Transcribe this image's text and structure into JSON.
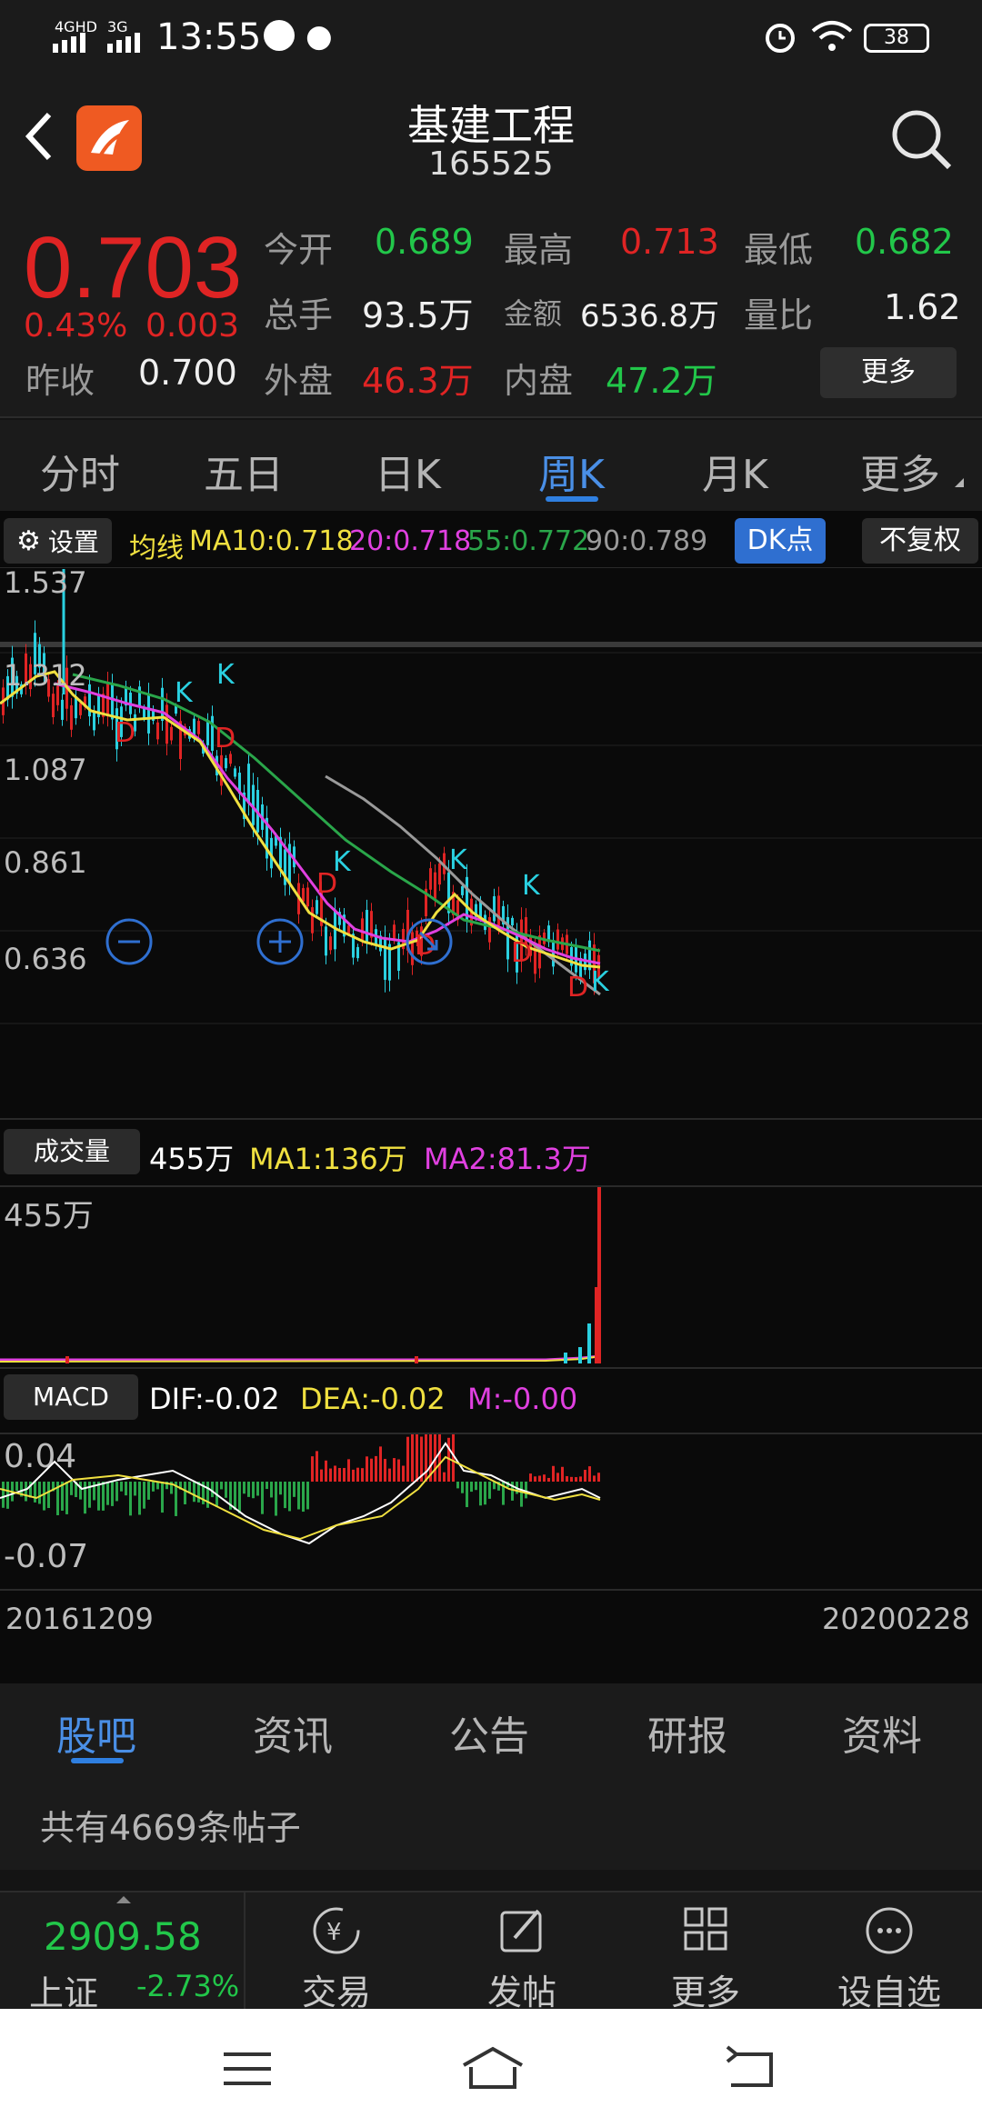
{
  "status": {
    "time": "13:55",
    "net1": "4GHD",
    "net2": "3G",
    "battery": "38"
  },
  "header": {
    "title": "基建工程",
    "code": "165525"
  },
  "quote": {
    "price": "0.703",
    "change_pct": "0.43%",
    "change": "0.003",
    "prev_close_label": "昨收",
    "prev_close": "0.700",
    "open_label": "今开",
    "open": "0.689",
    "high_label": "最高",
    "high": "0.713",
    "low_label": "最低",
    "low": "0.682",
    "volume_label": "总手",
    "volume": "93.5万",
    "amount_label": "金额",
    "amount": "6536.8万",
    "ratio_label": "量比",
    "ratio": "1.62",
    "outer_label": "外盘",
    "outer": "46.3万",
    "inner_label": "内盘",
    "inner": "47.2万",
    "more": "更多"
  },
  "periods": [
    "分时",
    "五日",
    "日K",
    "周K",
    "月K",
    "更多"
  ],
  "indicator_bar": {
    "settings": "设置",
    "ma_label": "均线",
    "ma10": "MA10:0.718",
    "ma20": "20:0.718",
    "ma55": "55:0.772",
    "ma90": "90:0.789",
    "dk": "DK点",
    "adjust": "不复权"
  },
  "price_axis": [
    "1.537",
    "1.312",
    "1.087",
    "0.861",
    "0.636"
  ],
  "volume_bar": {
    "label": "成交量",
    "value": "455万",
    "ma1": "MA1:136万",
    "ma2": "MA2:81.3万",
    "axis": "455万"
  },
  "macd_bar": {
    "label": "MACD",
    "dif": "DIF:-0.02",
    "dea": "DEA:-0.02",
    "m": "M:-0.00",
    "axis_top": "0.04",
    "axis_bottom": "-0.07"
  },
  "date_axis": {
    "start": "20161209",
    "end": "20200228"
  },
  "bottom_tabs": [
    "股吧",
    "资讯",
    "公告",
    "研报",
    "资料"
  ],
  "posts": "共有4669条帖子",
  "index": {
    "value": "2909.58",
    "name": "上证",
    "change": "-2.73%"
  },
  "toolbar": [
    "交易",
    "发帖",
    "更多",
    "设自选"
  ],
  "colors": {
    "up": "#e02424",
    "down": "#22c74a",
    "accent": "#2f7fe0",
    "k_down": "#2ad0e0"
  }
}
